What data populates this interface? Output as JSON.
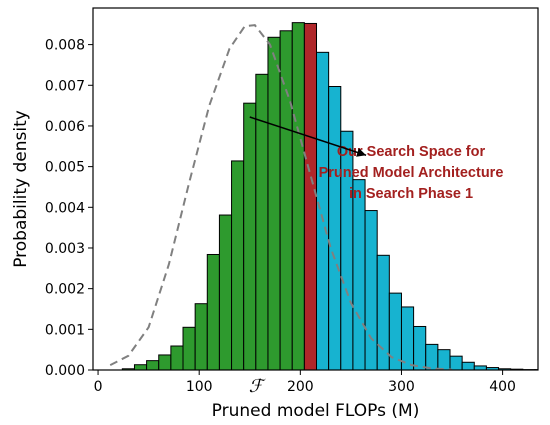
{
  "chart_data": {
    "type": "bar",
    "subtype": "histogram",
    "xlabel": "Pruned model FLOPs (M)",
    "ylabel": "Probability density",
    "xlim": [
      -5,
      435
    ],
    "ylim": [
      0,
      0.0089
    ],
    "xticks": [
      0,
      100,
      200,
      300,
      400
    ],
    "yticks": [
      0.0,
      0.001,
      0.002,
      0.003,
      0.004,
      0.005,
      0.006,
      0.007,
      0.008
    ],
    "ytick_labels": [
      "0.000",
      "0.001",
      "0.002",
      "0.003",
      "0.004",
      "0.005",
      "0.006",
      "0.007",
      "0.008"
    ],
    "bin_width": 12,
    "bin_start": 24,
    "densities": [
      3e-05,
      0.00013,
      0.00023,
      0.00037,
      0.00059,
      0.00105,
      0.00163,
      0.00284,
      0.00381,
      0.00514,
      0.00656,
      0.00727,
      0.00818,
      0.00834,
      0.00854,
      0.00852,
      0.00781,
      0.00697,
      0.00587,
      0.00468,
      0.00392,
      0.00282,
      0.00189,
      0.00155,
      0.00107,
      0.00063,
      0.0005,
      0.00034,
      0.00019,
      0.0001,
      6e-05,
      3e-05,
      2e-05,
      1e-05,
      1e-05,
      1e-05,
      5e-06
    ],
    "highlight_bin_index": 15,
    "bin_colors": {
      "below": "#2e9a2e",
      "highlight": "#b0272a",
      "above": "#17b3d0"
    },
    "density_curve": {
      "style": "dashed",
      "color": "#808080",
      "x": [
        12,
        30,
        50,
        70,
        90,
        110,
        130,
        145,
        155,
        170,
        190,
        210,
        230,
        250,
        270,
        290,
        310,
        330,
        350
      ],
      "y": [
        0.00012,
        0.00035,
        0.00105,
        0.0026,
        0.0046,
        0.0065,
        0.0079,
        0.00845,
        0.00848,
        0.008,
        0.0066,
        0.0048,
        0.003,
        0.00165,
        0.00078,
        0.00032,
        0.00012,
        4e-05,
        1e-05
      ]
    },
    "annotation": {
      "lines": [
        "Our Search Space for",
        "Pruned Model Architecture",
        "in Search Phase 1"
      ],
      "arrow_from_data": [
        150,
        0.00622
      ],
      "arrow_to_data": [
        265,
        0.00528
      ]
    },
    "marker_label": "ℱ",
    "marker_x": 156
  }
}
